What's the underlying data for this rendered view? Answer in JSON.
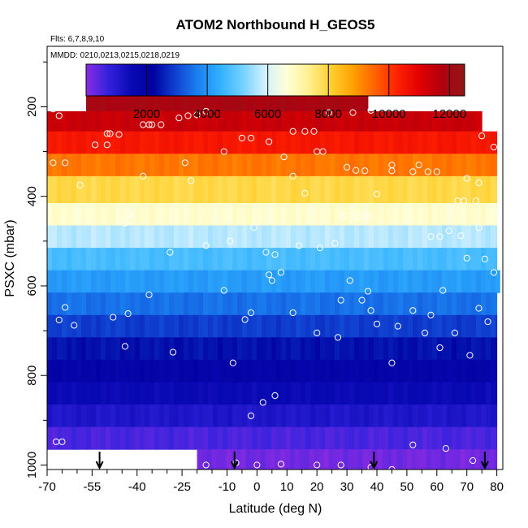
{
  "chart_data": {
    "type": "heatmap",
    "title": "ATOM2 Northbound H_GEOS5",
    "annotations": [
      "Flts: 6,7,8,9,10",
      "MMDD: 0210,0213,0215,0218,0219"
    ],
    "xlabel": "Latitude (deg N)",
    "ylabel": "PSXC (mbar)",
    "xlim": [
      -70,
      82
    ],
    "ylim": [
      1010,
      65
    ],
    "x_ticks": [
      -70,
      -55,
      -40,
      -25,
      -10,
      0,
      10,
      20,
      30,
      40,
      50,
      60,
      70,
      80
    ],
    "x_minor_ticks": [
      -65,
      -60,
      -50,
      -45,
      -35,
      -30,
      -20,
      -15,
      -5,
      5,
      15,
      25,
      35,
      45,
      55,
      65,
      75
    ],
    "y_ticks": [
      200,
      400,
      600,
      800,
      1000
    ],
    "y_minor_ticks": [
      100,
      300,
      500,
      700,
      900
    ],
    "colorbar": {
      "range": [
        0,
        12500
      ],
      "ticks": [
        2000,
        4000,
        6000,
        8000,
        10000,
        12000
      ],
      "colors": [
        "#8a2be2",
        "#3322dd",
        "#0a0ab4",
        "#0000a0",
        "#1040d0",
        "#1a80f0",
        "#30b0ff",
        "#70d0ff",
        "#d0f0ff",
        "#ffffd8",
        "#fff090",
        "#ffd030",
        "#ffa000",
        "#ff6000",
        "#ff2000",
        "#e00000",
        "#b00010",
        "#901818"
      ]
    },
    "bands": [
      {
        "p_top": 170,
        "p_bot": 210,
        "x_start": -57,
        "x_end": 37,
        "value": 11950
      },
      {
        "p_top": 210,
        "p_bot": 255,
        "x_start": -70,
        "x_end": 75,
        "value": 11400
      },
      {
        "p_top": 255,
        "p_bot": 305,
        "x_start": -70,
        "x_end": 80,
        "value": 10500
      },
      {
        "p_top": 305,
        "p_bot": 355,
        "x_start": -70,
        "x_end": 80,
        "value": 9300
      },
      {
        "p_top": 355,
        "p_bot": 415,
        "x_start": -70,
        "x_end": 80,
        "value": 7900
      },
      {
        "p_top": 415,
        "p_bot": 465,
        "x_start": -70,
        "x_end": 80,
        "value": 6700
      },
      {
        "p_top": 465,
        "p_bot": 515,
        "x_start": -70,
        "x_end": 80,
        "value": 5700
      },
      {
        "p_top": 515,
        "p_bot": 565,
        "x_start": -70,
        "x_end": 80,
        "value": 4700
      },
      {
        "p_top": 565,
        "p_bot": 615,
        "x_start": -70,
        "x_end": 81,
        "value": 4100
      },
      {
        "p_top": 615,
        "p_bot": 665,
        "x_start": -70,
        "x_end": 80,
        "value": 3500
      },
      {
        "p_top": 665,
        "p_bot": 715,
        "x_start": -70,
        "x_end": 80,
        "value": 2900
      },
      {
        "p_top": 715,
        "p_bot": 765,
        "x_start": -70,
        "x_end": 80,
        "value": 2400
      },
      {
        "p_top": 765,
        "p_bot": 815,
        "x_start": -70,
        "x_end": 80,
        "value": 1900
      },
      {
        "p_top": 815,
        "p_bot": 865,
        "x_start": -70,
        "x_end": 80,
        "value": 1500
      },
      {
        "p_top": 865,
        "p_bot": 915,
        "x_start": -70,
        "x_end": 80,
        "value": 1100
      },
      {
        "p_top": 915,
        "p_bot": 965,
        "x_start": -70,
        "x_end": 80,
        "value": 550
      },
      {
        "p_top": 965,
        "p_bot": 1010,
        "x_start": -20,
        "x_end": 80,
        "value": 200
      }
    ],
    "points": [
      [
        -68,
        205
      ],
      [
        -66,
        220
      ],
      [
        -63,
        200
      ],
      [
        -59,
        190
      ],
      [
        -50,
        260
      ],
      [
        -49,
        260
      ],
      [
        -46,
        262
      ],
      [
        -38,
        240
      ],
      [
        -36,
        240
      ],
      [
        -35,
        240
      ],
      [
        -32,
        240
      ],
      [
        -26,
        225
      ],
      [
        -23,
        220
      ],
      [
        -20,
        218
      ],
      [
        -17,
        210
      ],
      [
        -11,
        300
      ],
      [
        -5,
        270
      ],
      [
        -2,
        270
      ],
      [
        4,
        278
      ],
      [
        9,
        312
      ],
      [
        12,
        255
      ],
      [
        16,
        255
      ],
      [
        19,
        255
      ],
      [
        24,
        213
      ],
      [
        32,
        213
      ],
      [
        38,
        208
      ],
      [
        12,
        355
      ],
      [
        16,
        393
      ],
      [
        20,
        300
      ],
      [
        22,
        300
      ],
      [
        30,
        335
      ],
      [
        33,
        342
      ],
      [
        36,
        343
      ],
      [
        45,
        343
      ],
      [
        52,
        345
      ],
      [
        57,
        345
      ],
      [
        60,
        345
      ],
      [
        70,
        360
      ],
      [
        74,
        370
      ],
      [
        79,
        290
      ],
      [
        75,
        265
      ],
      [
        -68,
        325
      ],
      [
        -64,
        325
      ],
      [
        -59,
        375
      ],
      [
        -54,
        285
      ],
      [
        -50,
        285
      ],
      [
        -44,
        460
      ],
      [
        -43,
        440
      ],
      [
        -38,
        355
      ],
      [
        -24,
        325
      ],
      [
        -22,
        365
      ],
      [
        -29,
        525
      ],
      [
        -17,
        510
      ],
      [
        -9,
        500
      ],
      [
        -1,
        470
      ],
      [
        3,
        525
      ],
      [
        6,
        530
      ],
      [
        14,
        510
      ],
      [
        21,
        515
      ],
      [
        26,
        505
      ],
      [
        29,
        445
      ],
      [
        34,
        445
      ],
      [
        37,
        445
      ],
      [
        40,
        395
      ],
      [
        45,
        330
      ],
      [
        54,
        330
      ],
      [
        58,
        490
      ],
      [
        61,
        490
      ],
      [
        67,
        410
      ],
      [
        69,
        410
      ],
      [
        73,
        410
      ],
      [
        74,
        470
      ],
      [
        76,
        540
      ],
      [
        79,
        570
      ],
      [
        70,
        538
      ],
      [
        64,
        477
      ],
      [
        68,
        488
      ],
      [
        -66,
        676
      ],
      [
        -64,
        648
      ],
      [
        -61,
        688
      ],
      [
        -48,
        670
      ],
      [
        -43,
        662
      ],
      [
        -44,
        735
      ],
      [
        -36,
        620
      ],
      [
        -28,
        748
      ],
      [
        -11,
        610
      ],
      [
        -8,
        772
      ],
      [
        -4,
        675
      ],
      [
        -2,
        660
      ],
      [
        4,
        575
      ],
      [
        5,
        588
      ],
      [
        8,
        570
      ],
      [
        12,
        660
      ],
      [
        20,
        705
      ],
      [
        27,
        715
      ],
      [
        28,
        632
      ],
      [
        31,
        588
      ],
      [
        35,
        632
      ],
      [
        37,
        612
      ],
      [
        38,
        655
      ],
      [
        40,
        685
      ],
      [
        45,
        772
      ],
      [
        47,
        690
      ],
      [
        52,
        655
      ],
      [
        56,
        705
      ],
      [
        58,
        665
      ],
      [
        61,
        738
      ],
      [
        62,
        610
      ],
      [
        66,
        705
      ],
      [
        71,
        755
      ],
      [
        74,
        650
      ],
      [
        77,
        680
      ],
      [
        -17,
        1000
      ],
      [
        -7,
        995
      ],
      [
        0,
        1000
      ],
      [
        6,
        845
      ],
      [
        8,
        998
      ],
      [
        20,
        1000
      ],
      [
        28,
        1000
      ],
      [
        38,
        1005
      ],
      [
        45,
        1010
      ],
      [
        52,
        955
      ],
      [
        63,
        963
      ],
      [
        72,
        990
      ],
      [
        -2,
        890
      ],
      [
        2,
        860
      ],
      [
        -67,
        948
      ],
      [
        -65,
        948
      ]
    ],
    "arrows": [
      -52.5,
      -7.5,
      39,
      76
    ],
    "grid": false
  }
}
